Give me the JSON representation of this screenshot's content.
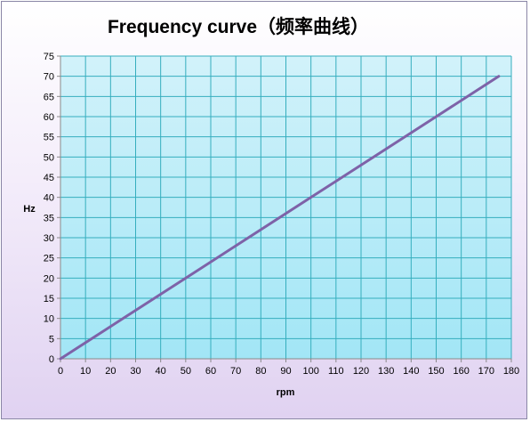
{
  "chart_data": {
    "type": "line",
    "title": "Frequency curve（频率曲线）",
    "xlabel": "rpm",
    "ylabel": "Hz",
    "xlim": [
      0,
      180
    ],
    "ylim": [
      0,
      75
    ],
    "x_ticks": [
      0,
      10,
      20,
      30,
      40,
      50,
      60,
      70,
      80,
      90,
      100,
      110,
      120,
      130,
      140,
      150,
      160,
      170,
      180
    ],
    "y_ticks": [
      0,
      5,
      10,
      15,
      20,
      25,
      30,
      35,
      40,
      45,
      50,
      55,
      60,
      65,
      70,
      75
    ],
    "grid": true,
    "legend": "none",
    "series": [
      {
        "x": [
          0,
          25,
          50,
          75,
          100,
          125,
          150,
          175
        ],
        "y": [
          0,
          10,
          20,
          30,
          40,
          50,
          60,
          70
        ]
      }
    ],
    "colors": {
      "line": "#7e62a8",
      "grid": "#35aebe",
      "plot_top": "#d2f2fa",
      "plot_bottom": "#a2e6f6",
      "axis": "#8a8a8a"
    }
  }
}
